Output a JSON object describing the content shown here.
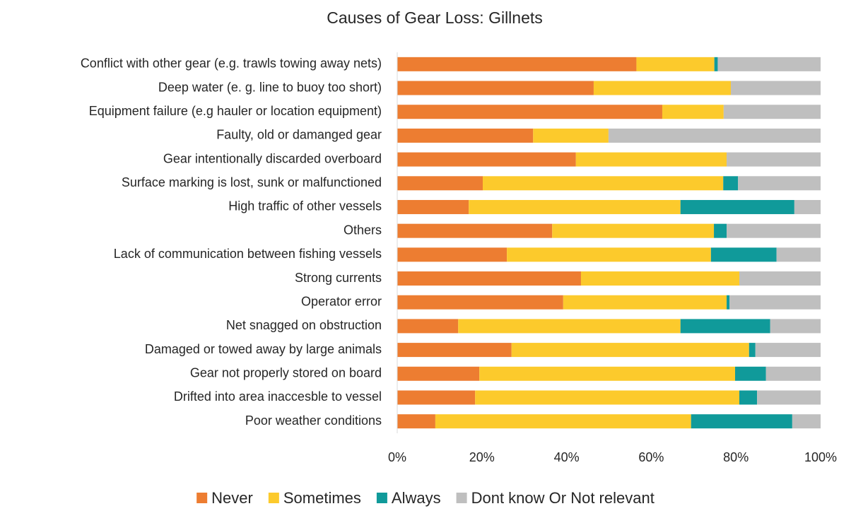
{
  "chart_data": {
    "type": "stacked_bar_horizontal",
    "title": "Causes of Gear Loss: Gillnets",
    "categories": [
      "Conflict with other gear (e.g. trawls towing away nets)",
      "Deep water (e. g. line to buoy too short)",
      "Equipment failure (e.g hauler or location equipment)",
      "Faulty, old or damanged gear",
      "Gear intentionally discarded overboard",
      "Surface marking is lost, sunk or malfunctioned",
      "High traffic of other vessels",
      "Others",
      "Lack of communication between fishing vessels",
      "Strong currents",
      "Operator error",
      "Net snagged on obstruction",
      "Damaged or towed away by large animals",
      "Gear not properly stored on board",
      "Drifted into area inaccesble to vessel",
      "Poor weather conditions"
    ],
    "series": [
      {
        "name": "Never",
        "color": "#ed7d31",
        "values": [
          56.5,
          46.4,
          62.6,
          32.1,
          42.2,
          20.2,
          16.9,
          36.6,
          25.9,
          43.4,
          39.2,
          14.4,
          27,
          19.4,
          18.4,
          9
        ]
      },
      {
        "name": "Sometimes",
        "color": "#fcca2c",
        "values": [
          18.4,
          32.4,
          14.5,
          17.8,
          35.6,
          56.8,
          50,
          38.2,
          48.2,
          37.4,
          38.6,
          52.5,
          56.1,
          60.4,
          62.4,
          60.4
        ]
      },
      {
        "name": "Always",
        "color": "#109a9a",
        "values": [
          0.8,
          0,
          0,
          0,
          0,
          3.5,
          26.9,
          3,
          15.5,
          0,
          0.7,
          21.2,
          1.5,
          7.3,
          4.2,
          23.9
        ]
      },
      {
        "name": "Dont know Or Not relevant",
        "color": "#bfbfbf",
        "values": [
          24.3,
          21.2,
          22.9,
          50.1,
          22.2,
          19.5,
          6.2,
          22.2,
          10.4,
          19.2,
          21.5,
          11.9,
          15.4,
          12.9,
          15,
          6.7
        ]
      }
    ],
    "xlim": [
      0,
      100
    ],
    "xticks": [
      {
        "value": 0,
        "label": "0%"
      },
      {
        "value": 20,
        "label": "20%"
      },
      {
        "value": 40,
        "label": "40%"
      },
      {
        "value": 60,
        "label": "60%"
      },
      {
        "value": 80,
        "label": "80%"
      },
      {
        "value": 100,
        "label": "100%"
      }
    ],
    "legend": "bottom"
  }
}
